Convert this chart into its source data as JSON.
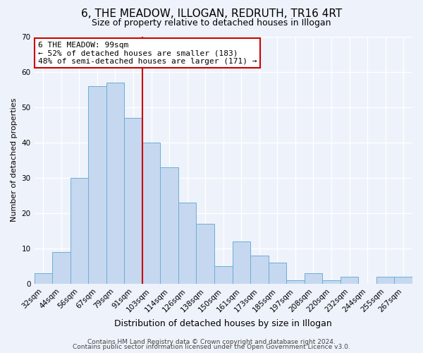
{
  "title": "6, THE MEADOW, ILLOGAN, REDRUTH, TR16 4RT",
  "subtitle": "Size of property relative to detached houses in Illogan",
  "xlabel": "Distribution of detached houses by size in Illogan",
  "ylabel": "Number of detached properties",
  "categories": [
    "32sqm",
    "44sqm",
    "56sqm",
    "67sqm",
    "79sqm",
    "91sqm",
    "103sqm",
    "114sqm",
    "126sqm",
    "138sqm",
    "150sqm",
    "161sqm",
    "173sqm",
    "185sqm",
    "197sqm",
    "208sqm",
    "220sqm",
    "232sqm",
    "244sqm",
    "255sqm",
    "267sqm"
  ],
  "values": [
    3,
    9,
    30,
    56,
    57,
    47,
    40,
    33,
    23,
    17,
    5,
    12,
    8,
    6,
    1,
    3,
    1,
    2,
    0,
    2,
    2
  ],
  "bar_color": "#c5d8f0",
  "bar_edge_color": "#6baed6",
  "marker_bin_index": 6,
  "marker_color": "#cc0000",
  "annotation_text": "6 THE MEADOW: 99sqm\n← 52% of detached houses are smaller (183)\n48% of semi-detached houses are larger (171) →",
  "annotation_box_color": "#ffffff",
  "annotation_box_edge": "#cc0000",
  "ylim": [
    0,
    70
  ],
  "yticks": [
    0,
    10,
    20,
    30,
    40,
    50,
    60,
    70
  ],
  "footer1": "Contains HM Land Registry data © Crown copyright and database right 2024.",
  "footer2": "Contains public sector information licensed under the Open Government Licence v3.0.",
  "background_color": "#eef2fa",
  "plot_background": "#eef2fa",
  "grid_color": "#ffffff",
  "title_fontsize": 11,
  "subtitle_fontsize": 9,
  "xlabel_fontsize": 9,
  "ylabel_fontsize": 8,
  "tick_fontsize": 7.5,
  "footer_fontsize": 6.5
}
